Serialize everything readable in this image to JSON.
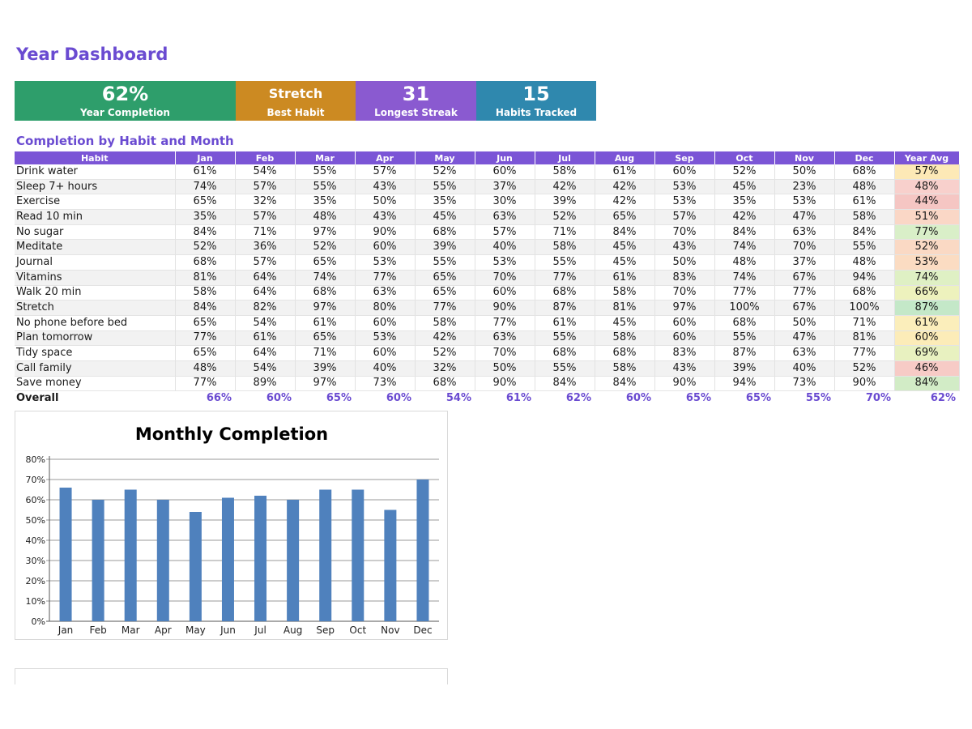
{
  "title": "Year Dashboard",
  "kpis": [
    {
      "value": "62%",
      "label": "Year Completion",
      "color": "#2e9e6b"
    },
    {
      "value": "Stretch",
      "label": "Best Habit",
      "color": "#cc8a22"
    },
    {
      "value": "31",
      "label": "Longest Streak",
      "color": "#8a5ad0"
    },
    {
      "value": "15",
      "label": "Habits Tracked",
      "color": "#2f88ae"
    }
  ],
  "section_title": "Completion by Habit and Month",
  "table": {
    "headers": [
      "Habit",
      "Jan",
      "Feb",
      "Mar",
      "Apr",
      "May",
      "Jun",
      "Jul",
      "Aug",
      "Sep",
      "Oct",
      "Nov",
      "Dec",
      "Year Avg"
    ],
    "rows": [
      {
        "name": "Drink water",
        "values": [
          "61%",
          "54%",
          "55%",
          "57%",
          "52%",
          "60%",
          "58%",
          "61%",
          "60%",
          "52%",
          "50%",
          "68%"
        ],
        "avg": "57%",
        "avg_color": "#fde9b6"
      },
      {
        "name": "Sleep 7+ hours",
        "values": [
          "74%",
          "57%",
          "55%",
          "43%",
          "55%",
          "37%",
          "42%",
          "42%",
          "53%",
          "45%",
          "23%",
          "48%"
        ],
        "avg": "48%",
        "avg_color": "#f8d0cc"
      },
      {
        "name": "Exercise",
        "values": [
          "65%",
          "32%",
          "35%",
          "50%",
          "35%",
          "30%",
          "39%",
          "42%",
          "53%",
          "35%",
          "53%",
          "61%"
        ],
        "avg": "44%",
        "avg_color": "#f5c6c3"
      },
      {
        "name": "Read 10 min",
        "values": [
          "35%",
          "57%",
          "48%",
          "43%",
          "45%",
          "63%",
          "52%",
          "65%",
          "57%",
          "42%",
          "47%",
          "58%"
        ],
        "avg": "51%",
        "avg_color": "#fad7c6"
      },
      {
        "name": "No sugar",
        "values": [
          "84%",
          "71%",
          "97%",
          "90%",
          "68%",
          "57%",
          "71%",
          "84%",
          "70%",
          "84%",
          "63%",
          "84%"
        ],
        "avg": "77%",
        "avg_color": "#d9efc8"
      },
      {
        "name": "Meditate",
        "values": [
          "52%",
          "36%",
          "52%",
          "60%",
          "39%",
          "40%",
          "58%",
          "45%",
          "43%",
          "74%",
          "70%",
          "55%"
        ],
        "avg": "52%",
        "avg_color": "#fad9c4"
      },
      {
        "name": "Journal",
        "values": [
          "68%",
          "57%",
          "65%",
          "53%",
          "55%",
          "53%",
          "55%",
          "45%",
          "50%",
          "48%",
          "37%",
          "48%"
        ],
        "avg": "53%",
        "avg_color": "#fbdcc2"
      },
      {
        "name": "Vitamins",
        "values": [
          "81%",
          "64%",
          "74%",
          "77%",
          "65%",
          "70%",
          "77%",
          "61%",
          "83%",
          "74%",
          "67%",
          "94%"
        ],
        "avg": "74%",
        "avg_color": "#dff0c4"
      },
      {
        "name": "Walk 20 min",
        "values": [
          "58%",
          "64%",
          "68%",
          "63%",
          "65%",
          "60%",
          "68%",
          "58%",
          "70%",
          "77%",
          "77%",
          "68%"
        ],
        "avg": "66%",
        "avg_color": "#edf2bd"
      },
      {
        "name": "Stretch",
        "values": [
          "84%",
          "82%",
          "97%",
          "80%",
          "77%",
          "90%",
          "87%",
          "81%",
          "97%",
          "100%",
          "67%",
          "100%"
        ],
        "avg": "87%",
        "avg_color": "#c4e8c8"
      },
      {
        "name": "No phone before bed",
        "values": [
          "65%",
          "54%",
          "61%",
          "60%",
          "58%",
          "77%",
          "61%",
          "45%",
          "60%",
          "68%",
          "50%",
          "71%"
        ],
        "avg": "61%",
        "avg_color": "#fbeebb"
      },
      {
        "name": "Plan tomorrow",
        "values": [
          "77%",
          "61%",
          "65%",
          "53%",
          "42%",
          "63%",
          "55%",
          "58%",
          "60%",
          "55%",
          "47%",
          "81%"
        ],
        "avg": "60%",
        "avg_color": "#fcecb8"
      },
      {
        "name": "Tidy space",
        "values": [
          "65%",
          "64%",
          "71%",
          "60%",
          "52%",
          "70%",
          "68%",
          "68%",
          "83%",
          "87%",
          "63%",
          "77%"
        ],
        "avg": "69%",
        "avg_color": "#e8f1c0"
      },
      {
        "name": "Call family",
        "values": [
          "48%",
          "54%",
          "39%",
          "40%",
          "32%",
          "50%",
          "55%",
          "58%",
          "43%",
          "39%",
          "40%",
          "52%"
        ],
        "avg": "46%",
        "avg_color": "#f7cbc6"
      },
      {
        "name": "Save money",
        "values": [
          "77%",
          "89%",
          "97%",
          "73%",
          "68%",
          "90%",
          "84%",
          "84%",
          "90%",
          "94%",
          "73%",
          "90%"
        ],
        "avg": "84%",
        "avg_color": "#d2ecc6"
      }
    ],
    "overall": {
      "label": "Overall",
      "values": [
        "66%",
        "60%",
        "65%",
        "60%",
        "54%",
        "61%",
        "62%",
        "60%",
        "65%",
        "65%",
        "55%",
        "70%"
      ],
      "avg": "62%"
    }
  },
  "chart_data": {
    "type": "bar",
    "title": "Monthly Completion",
    "categories": [
      "Jan",
      "Feb",
      "Mar",
      "Apr",
      "May",
      "Jun",
      "Jul",
      "Aug",
      "Sep",
      "Oct",
      "Nov",
      "Dec"
    ],
    "values": [
      66,
      60,
      65,
      60,
      54,
      61,
      62,
      60,
      65,
      65,
      55,
      70
    ],
    "ylim": [
      0,
      80
    ],
    "yticks": [
      "0%",
      "10%",
      "20%",
      "30%",
      "40%",
      "50%",
      "60%",
      "70%",
      "80%"
    ],
    "grid": true,
    "bar_color": "#4f81bd",
    "xlabel": "",
    "ylabel": ""
  }
}
